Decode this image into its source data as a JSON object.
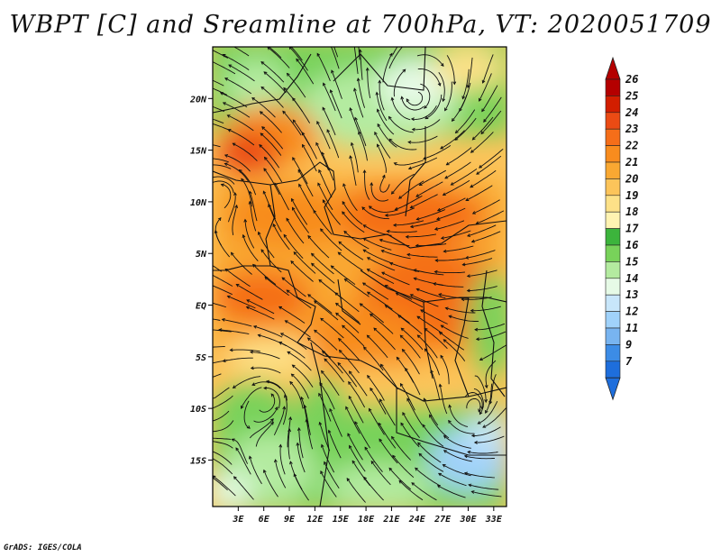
{
  "title": "WBPT [C] and Sreamline at 700hPa, VT: 2020051709",
  "credit": "GrADS: IGES/COLA",
  "map": {
    "lat_labels": [
      "20N",
      "15N",
      "10N",
      "5N",
      "EQ",
      "5S",
      "10S",
      "15S"
    ],
    "lat_values": [
      20,
      15,
      10,
      5,
      0,
      -5,
      -10,
      -15
    ],
    "lon_labels": [
      "3E",
      "6E",
      "9E",
      "12E",
      "15E",
      "18E",
      "21E",
      "24E",
      "27E",
      "30E",
      "33E"
    ],
    "lon_values": [
      3,
      6,
      9,
      12,
      15,
      18,
      21,
      24,
      27,
      30,
      33
    ],
    "lon_range": [
      0,
      34.5
    ],
    "lat_range": [
      -19.5,
      25
    ],
    "variable": "wet-bulb potential temperature",
    "unit": "C",
    "level_hPa": 700
  },
  "colorbar": {
    "labels": [
      "26",
      "25",
      "24",
      "23",
      "22",
      "21",
      "20",
      "19",
      "18",
      "17",
      "16",
      "15",
      "14",
      "13",
      "12",
      "11",
      "9",
      "7"
    ],
    "colors": [
      "#b40000",
      "#d21e00",
      "#eb4b14",
      "#f56e19",
      "#f88c1e",
      "#f9a832",
      "#fcc45a",
      "#fde188",
      "#fff3b2",
      "#3cb43c",
      "#78d25a",
      "#b4eba0",
      "#e6fae6",
      "#c8e6fa",
      "#a0d2fa",
      "#78b4f0",
      "#3c8ce6",
      "#1e6edc"
    ]
  }
}
